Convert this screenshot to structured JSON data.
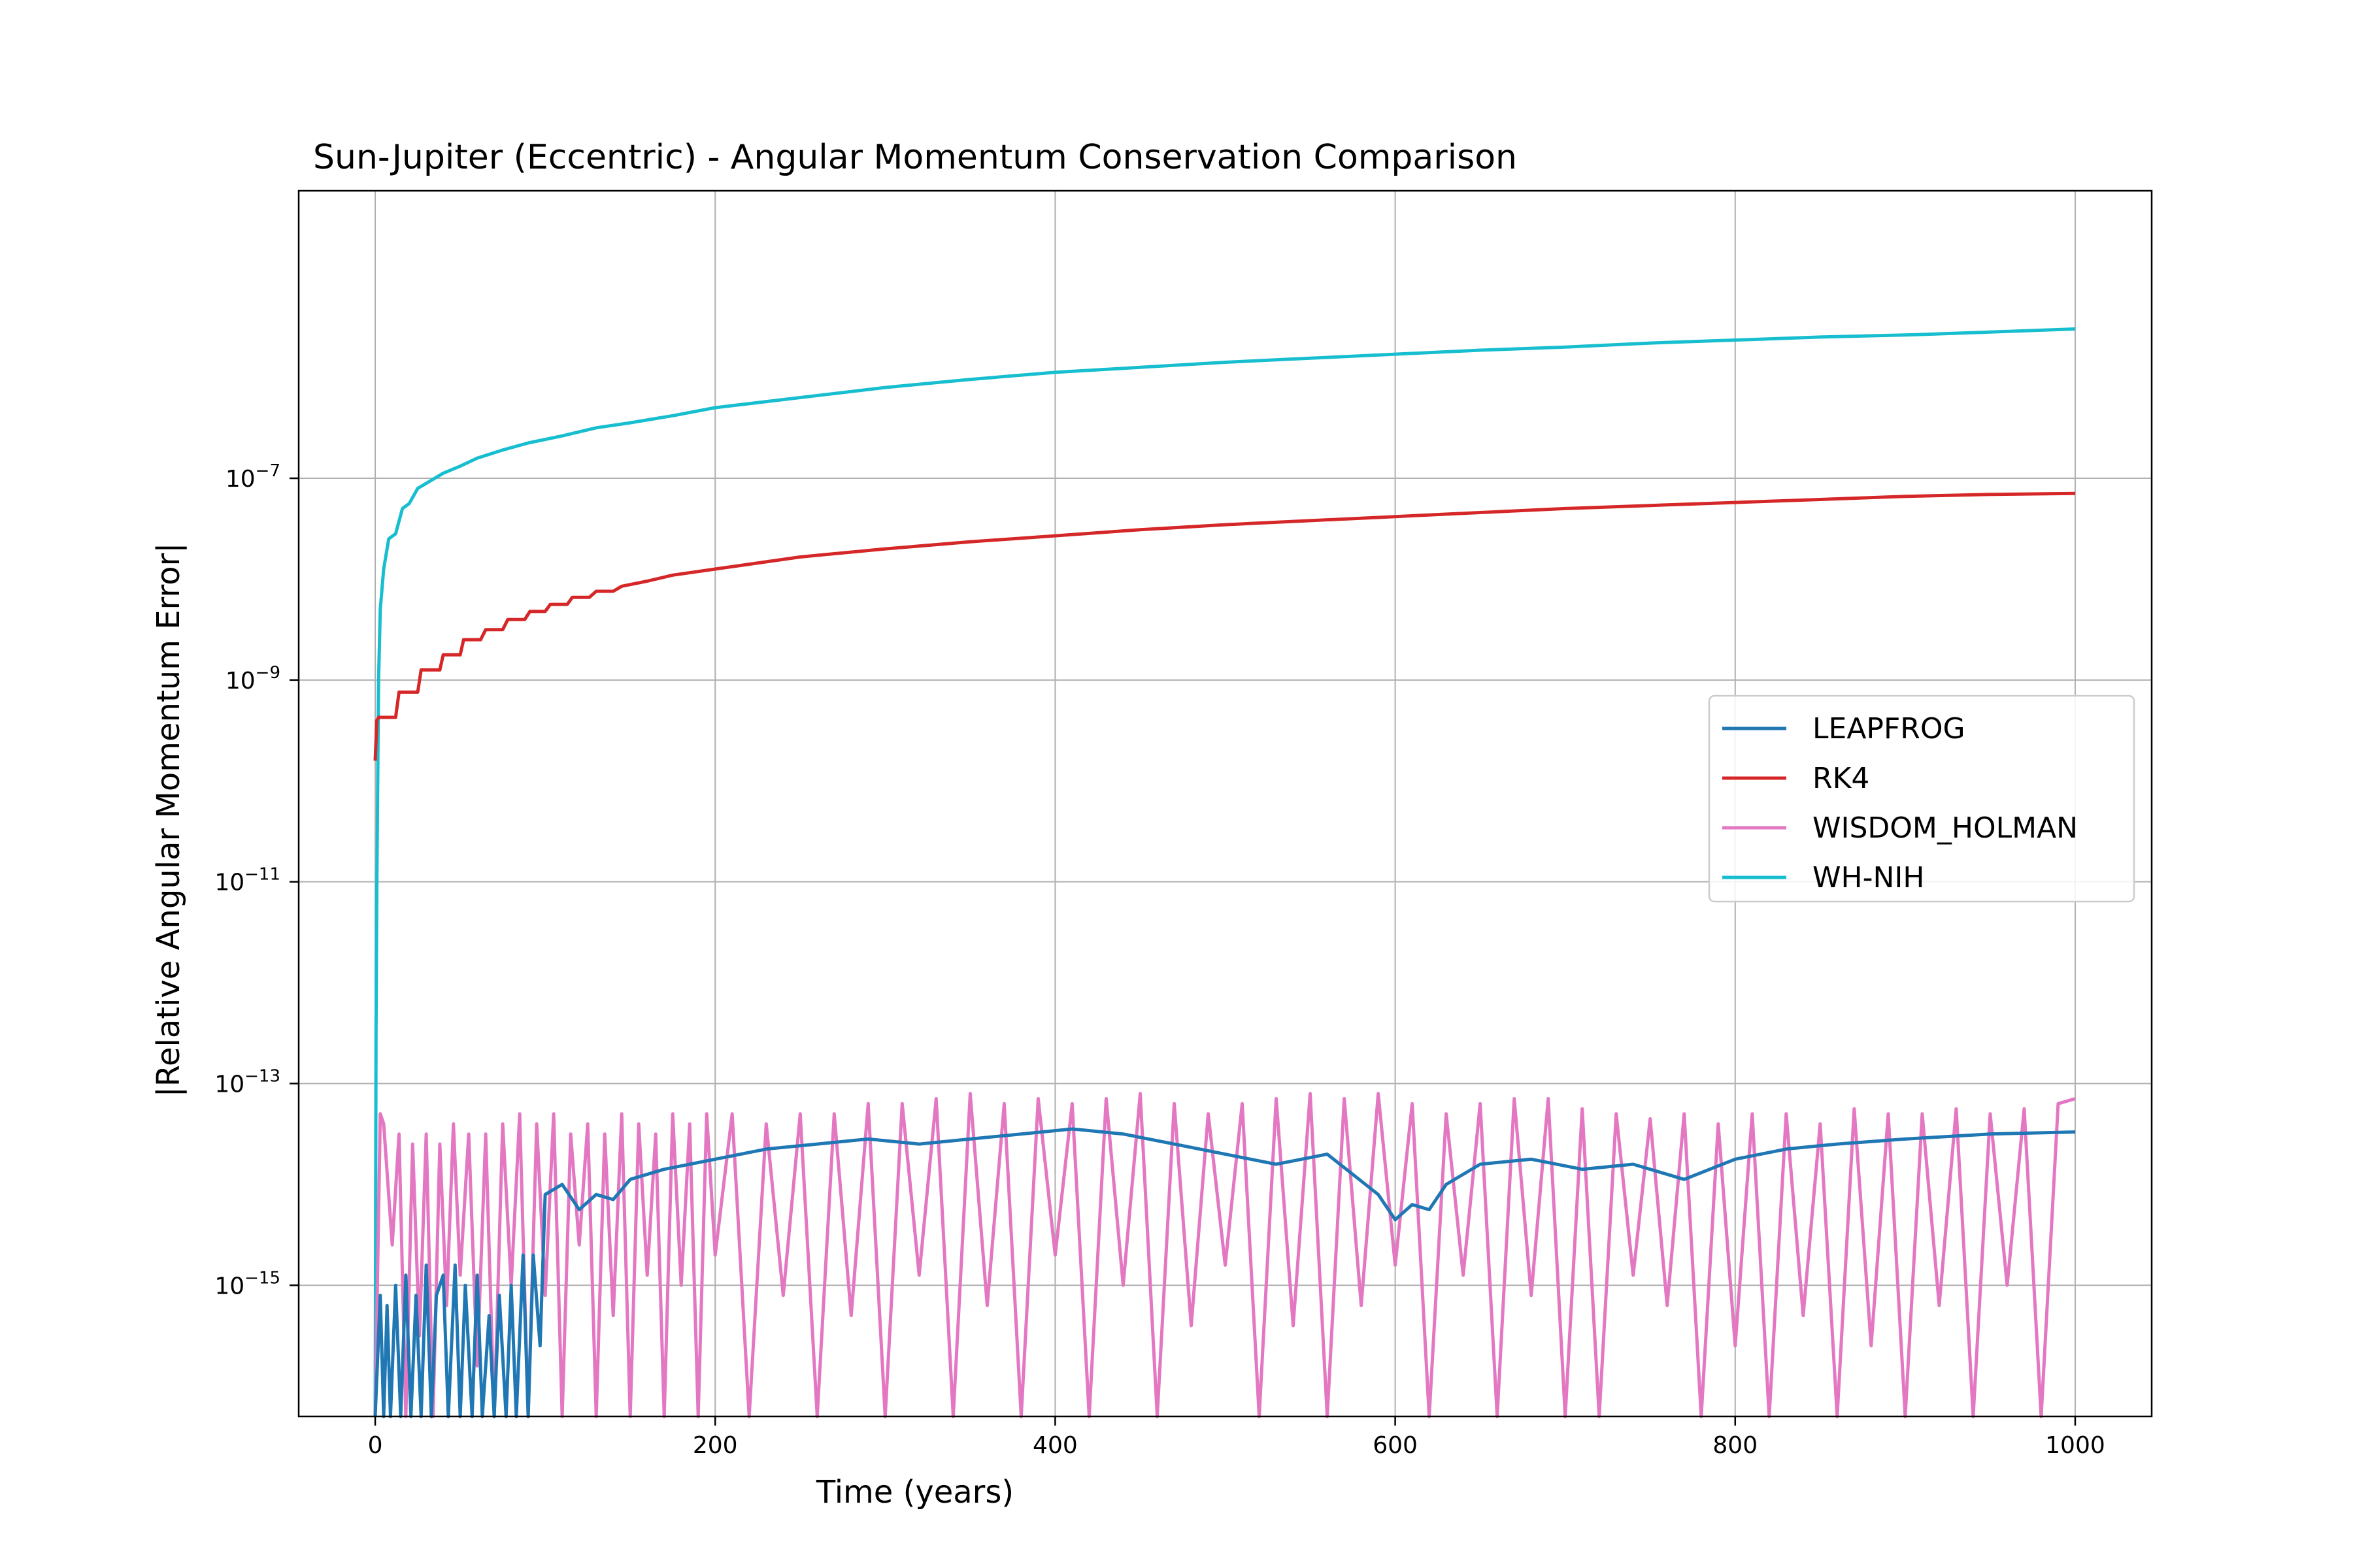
{
  "chart_data": {
    "type": "line",
    "title": "Sun-Jupiter (Eccentric) - Angular Momentum Conservation Comparison",
    "xlabel": "Time (years)",
    "ylabel": "|Relative Angular Momentum Error|",
    "xlim": [
      -45,
      1045
    ],
    "ylim_log10": [
      -16.3,
      -4.15
    ],
    "yscale": "log",
    "grid": true,
    "legend_position": "center-right",
    "x_ticks": [
      0,
      200,
      400,
      600,
      800,
      1000
    ],
    "y_ticks": [
      {
        "exp": -7,
        "base": "10",
        "sup": "−7"
      },
      {
        "exp": -9,
        "base": "10",
        "sup": "−9"
      },
      {
        "exp": -11,
        "base": "10",
        "sup": "−11"
      },
      {
        "exp": -13,
        "base": "10",
        "sup": "−13"
      },
      {
        "exp": -15,
        "base": "10",
        "sup": "−15"
      }
    ],
    "series": [
      {
        "name": "LEAPFROG",
        "color": "#1f77b4"
      },
      {
        "name": "RK4",
        "color": "#d62728"
      },
      {
        "name": "WISDOM_HOLMAN",
        "color": "#e377c2"
      },
      {
        "name": "WH-NIH",
        "color": "#17becf"
      }
    ],
    "series_data": {
      "WH-NIH": {
        "x": [
          0,
          0.5,
          1,
          2,
          3,
          5,
          8,
          12,
          16,
          20,
          25,
          30,
          40,
          50,
          60,
          75,
          90,
          110,
          130,
          150,
          175,
          200,
          250,
          300,
          350,
          400,
          450,
          500,
          550,
          600,
          650,
          700,
          750,
          800,
          850,
          900,
          950,
          1000
        ],
        "log10y": [
          -16.3,
          -12.5,
          -11.0,
          -9.0,
          -8.3,
          -7.9,
          -7.6,
          -7.55,
          -7.3,
          -7.25,
          -7.1,
          -7.05,
          -6.95,
          -6.88,
          -6.8,
          -6.72,
          -6.65,
          -6.58,
          -6.5,
          -6.45,
          -6.38,
          -6.3,
          -6.2,
          -6.1,
          -6.02,
          -5.95,
          -5.9,
          -5.85,
          -5.81,
          -5.77,
          -5.73,
          -5.7,
          -5.66,
          -5.63,
          -5.6,
          -5.58,
          -5.55,
          -5.52
        ]
      },
      "RK4": {
        "x": [
          0,
          1,
          2,
          12,
          14,
          25,
          27,
          38,
          40,
          50,
          52,
          62,
          65,
          75,
          78,
          88,
          91,
          100,
          103,
          113,
          116,
          126,
          130,
          140,
          145,
          160,
          175,
          200,
          250,
          300,
          350,
          400,
          450,
          500,
          550,
          600,
          650,
          700,
          750,
          800,
          850,
          900,
          950,
          1000
        ],
        "log10y": [
          -9.8,
          -9.4,
          -9.37,
          -9.37,
          -9.12,
          -9.12,
          -8.9,
          -8.9,
          -8.75,
          -8.75,
          -8.6,
          -8.6,
          -8.5,
          -8.5,
          -8.4,
          -8.4,
          -8.32,
          -8.32,
          -8.25,
          -8.25,
          -8.18,
          -8.18,
          -8.12,
          -8.12,
          -8.07,
          -8.02,
          -7.96,
          -7.9,
          -7.78,
          -7.7,
          -7.63,
          -7.57,
          -7.51,
          -7.46,
          -7.42,
          -7.38,
          -7.34,
          -7.3,
          -7.27,
          -7.24,
          -7.21,
          -7.18,
          -7.16,
          -7.15
        ]
      },
      "LEAPFROG": {
        "x": [
          0,
          3,
          5,
          7,
          9,
          12,
          15,
          18,
          21,
          24,
          27,
          30,
          33,
          36,
          40,
          43,
          47,
          50,
          53,
          57,
          60,
          63,
          67,
          70,
          73,
          77,
          80,
          83,
          87,
          90,
          93,
          97,
          100,
          110,
          120,
          130,
          140,
          150,
          170,
          200,
          230,
          260,
          290,
          320,
          350,
          380,
          410,
          440,
          470,
          500,
          530,
          560,
          575,
          590,
          600,
          610,
          620,
          630,
          650,
          680,
          710,
          740,
          770,
          800,
          830,
          860,
          900,
          950,
          1000
        ],
        "log10y": [
          -16.3,
          -15.1,
          -16.3,
          -15.2,
          -16.3,
          -15.0,
          -16.3,
          -14.9,
          -16.3,
          -15.1,
          -16.3,
          -14.8,
          -16.3,
          -15.1,
          -14.9,
          -16.3,
          -14.8,
          -16.3,
          -15.0,
          -16.3,
          -14.9,
          -16.3,
          -15.3,
          -16.3,
          -15.1,
          -16.3,
          -15.0,
          -16.3,
          -14.7,
          -16.3,
          -14.7,
          -15.6,
          -14.1,
          -14.0,
          -14.25,
          -14.1,
          -14.15,
          -13.95,
          -13.85,
          -13.75,
          -13.65,
          -13.6,
          -13.55,
          -13.6,
          -13.55,
          -13.5,
          -13.45,
          -13.5,
          -13.6,
          -13.7,
          -13.8,
          -13.7,
          -13.9,
          -14.1,
          -14.35,
          -14.2,
          -14.25,
          -14.0,
          -13.8,
          -13.75,
          -13.85,
          -13.8,
          -13.95,
          -13.75,
          -13.65,
          -13.6,
          -13.55,
          -13.5,
          -13.48
        ]
      },
      "WISDOM_HOLMAN": {
        "x": [
          0,
          3,
          5,
          10,
          14,
          18,
          22,
          26,
          30,
          34,
          38,
          42,
          46,
          50,
          55,
          60,
          65,
          70,
          75,
          80,
          85,
          90,
          95,
          100,
          105,
          110,
          115,
          120,
          125,
          130,
          135,
          140,
          145,
          150,
          155,
          160,
          165,
          170,
          175,
          180,
          185,
          190,
          195,
          200,
          210,
          220,
          230,
          240,
          250,
          260,
          270,
          280,
          290,
          300,
          310,
          320,
          330,
          340,
          350,
          360,
          370,
          380,
          390,
          400,
          410,
          420,
          430,
          440,
          450,
          460,
          470,
          480,
          490,
          500,
          510,
          520,
          530,
          540,
          550,
          560,
          570,
          580,
          590,
          600,
          610,
          620,
          630,
          640,
          650,
          660,
          670,
          680,
          690,
          700,
          710,
          720,
          730,
          740,
          750,
          760,
          770,
          780,
          790,
          800,
          810,
          820,
          830,
          840,
          850,
          860,
          870,
          880,
          890,
          900,
          910,
          920,
          930,
          940,
          950,
          960,
          970,
          980,
          990,
          1000
        ],
        "log10y": [
          -16.3,
          -13.3,
          -13.4,
          -14.6,
          -13.5,
          -16.3,
          -13.6,
          -15.5,
          -13.5,
          -16.3,
          -13.6,
          -15.2,
          -13.4,
          -14.9,
          -13.5,
          -15.8,
          -13.5,
          -16.3,
          -13.4,
          -15.0,
          -13.3,
          -16.3,
          -13.4,
          -15.1,
          -13.3,
          -16.3,
          -13.5,
          -14.6,
          -13.4,
          -16.3,
          -13.5,
          -15.3,
          -13.3,
          -16.3,
          -13.4,
          -14.9,
          -13.5,
          -16.3,
          -13.3,
          -15.0,
          -13.4,
          -16.3,
          -13.3,
          -14.7,
          -13.3,
          -16.3,
          -13.4,
          -15.1,
          -13.3,
          -16.3,
          -13.3,
          -15.3,
          -13.2,
          -16.3,
          -13.2,
          -14.9,
          -13.15,
          -16.3,
          -13.1,
          -15.2,
          -13.2,
          -16.3,
          -13.15,
          -14.7,
          -13.2,
          -16.3,
          -13.15,
          -15.0,
          -13.1,
          -16.3,
          -13.2,
          -15.4,
          -13.3,
          -14.8,
          -13.2,
          -16.3,
          -13.15,
          -15.4,
          -13.1,
          -16.3,
          -13.15,
          -15.2,
          -13.1,
          -14.8,
          -13.2,
          -16.3,
          -13.3,
          -14.9,
          -13.2,
          -16.3,
          -13.15,
          -15.1,
          -13.15,
          -16.3,
          -13.25,
          -16.3,
          -13.3,
          -14.9,
          -13.35,
          -15.2,
          -13.3,
          -16.3,
          -13.4,
          -15.6,
          -13.3,
          -16.3,
          -13.3,
          -15.3,
          -13.4,
          -16.3,
          -13.25,
          -15.6,
          -13.3,
          -16.3,
          -13.3,
          -15.2,
          -13.25,
          -16.3,
          -13.3,
          -15.0,
          -13.25,
          -16.3,
          -13.2,
          -13.15
        ]
      }
    }
  }
}
